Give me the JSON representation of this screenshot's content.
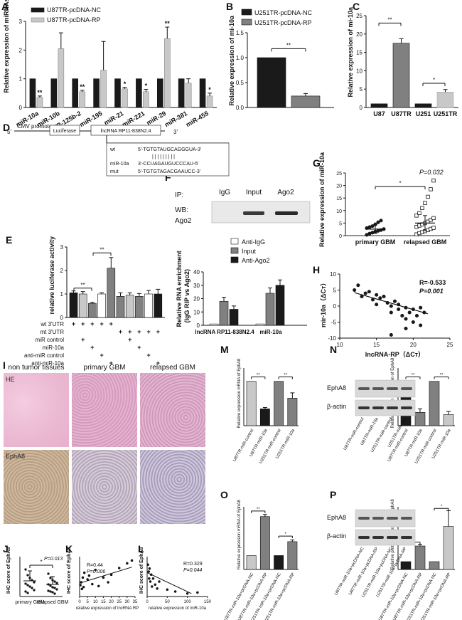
{
  "panel_labels": {
    "A": "A",
    "B": "B",
    "C": "C",
    "D": "D",
    "E": "E",
    "F": "F",
    "G": "G",
    "H": "H",
    "I": "I",
    "J": "J",
    "K": "K",
    "L": "L",
    "M": "M",
    "N": "N",
    "O": "O",
    "P": "P"
  },
  "colors": {
    "dark": "#1a1a1a",
    "mid": "#808080",
    "light": "#c8c8c8",
    "white": "#ffffff",
    "he_pink": "#e8b8d0",
    "epha8_tan": "#c8b6a0"
  },
  "panelA": {
    "ylabel": "Relative expression of miRNAs",
    "legend": [
      "U87TR-pcDNA-NC",
      "U87TR-pcDNA-RP"
    ],
    "yticks": [
      "0",
      "1",
      "2",
      "3"
    ],
    "sig": [
      "**",
      "",
      "**",
      "",
      "*",
      "*",
      "**",
      "",
      "*"
    ]
  },
  "panelB": {
    "ylabel": "Relative expression of mi-10a",
    "legend": [
      "U251TR-pcDNA-NC",
      "U251TR-pcDNA-RP"
    ],
    "yticks": [
      "0.0",
      "0.5",
      "1.0",
      "1.5"
    ],
    "sig": "**"
  },
  "panelC": {
    "ylabel": "Relative expression of mi-10a",
    "yticks": [
      "0",
      "5",
      "10",
      "15",
      "20",
      "25"
    ],
    "sig": [
      "**",
      "*"
    ]
  },
  "panelD": {
    "promoter": "CMV promotor",
    "luciferase": "Luciferase",
    "lncrna": "lncRNA RP11-838N2.4",
    "five": "5'",
    "three": "3'",
    "wt_label": "wt",
    "wt_seq": "5'-TGTGTAUGCAGGGUA-3'",
    "mir_label": "miR-10a",
    "mir_seq": "3'-CCUAGAUGUCCCAU-5'",
    "mut_label": "mut",
    "mut_seq": "5'-TGTGTAGACGAAUCC-3'",
    "pairing": "| | | | | | | | |"
  },
  "panelE": {
    "ylabel": "relative luciferase activity",
    "yticks": [
      "0",
      "1",
      "2",
      "3"
    ],
    "rows": [
      "wt 3'UTR",
      "mt 3'UTR",
      "miR control",
      "miR-10a",
      "anti-miR control",
      "anti-miR-10a"
    ],
    "marks": [
      [
        "+",
        "+",
        "+",
        "+",
        "+",
        "",
        "",
        "",
        "",
        ""
      ],
      [
        "",
        "",
        "",
        "",
        "",
        "+",
        "+",
        "+",
        "+",
        "+"
      ],
      [
        "",
        "+",
        "",
        "",
        "",
        "",
        "+",
        "",
        "",
        ""
      ],
      [
        "",
        "",
        "+",
        "",
        "",
        "",
        "",
        "+",
        "",
        ""
      ],
      [
        "",
        "",
        "",
        "+",
        "",
        "",
        "",
        "",
        "+",
        ""
      ],
      [
        "",
        "",
        "",
        "",
        "+",
        "",
        "",
        "",
        "",
        "+"
      ]
    ],
    "sig": [
      "**",
      "**"
    ]
  },
  "panelF": {
    "ip": "IP:",
    "wb": "WB:",
    "ago2_row": "Ago2",
    "lanes": [
      "IgG",
      "Input",
      "Ago2"
    ],
    "ylabel1": "Relative RNA enrichment",
    "ylabel2": "(IgG RIP vs Ago2)",
    "yticks": [
      "0",
      "10",
      "20",
      "30",
      "40"
    ],
    "legend": [
      "Anti-IgG",
      "Input",
      "Anti-Ago2"
    ],
    "groups": [
      "lncRNA RP11-838N2.4",
      "miR-10a"
    ]
  },
  "panelG": {
    "ylabel": "Relative expression of miR-10a",
    "pvalue": "P=0.032",
    "sig": "*",
    "groups": [
      "primary GBM",
      "relapsed GBM"
    ],
    "yticks": [
      "0",
      "5",
      "10",
      "15",
      "20",
      "25"
    ]
  },
  "panelH": {
    "R": "R=-0.533",
    "P": "P=0.001",
    "ylabel": "mir-10a（ΔCт）",
    "xlabel": "lncRNA-RP（ΔCт）",
    "xticks": [
      "10",
      "15",
      "20",
      "25"
    ],
    "yticks": [
      "-10",
      "-5",
      "0",
      "5",
      "10"
    ]
  },
  "panelI": {
    "cols": [
      "non tumor tissues",
      "primary GBM",
      "relapsed GBM"
    ],
    "rows": [
      "HE",
      "EphA8"
    ]
  },
  "panelJ": {
    "ylabel": "IHC score of EphA8",
    "pvalue": "P=0.013",
    "sig": "*",
    "groups": [
      "primary GBM",
      "relapsed GBM"
    ]
  },
  "panelK": {
    "R": "R=0.44",
    "P": "P=0.006",
    "ylabel": "IHC score of EphA8",
    "xlabel": "relative expression of lncRNA RP",
    "xticks": [
      "0",
      "5",
      "10",
      "15",
      "20",
      "25",
      "30",
      "35"
    ]
  },
  "panelL": {
    "R": "R=0.329",
    "P": "P=0.044",
    "ylabel": "IHC score of EphA8",
    "xlabel": "relative expression of miR-10a",
    "xticks": [
      "0",
      "50",
      "100",
      "150"
    ]
  },
  "panelM": {
    "ylabel": "Relative expression mRNA of EphA8",
    "cats": [
      "U87TR-miR-control",
      "U87TR-miR-10a",
      "U251TR-miR-control",
      "U251TR-miR-10a"
    ]
  },
  "panelN": {
    "blots": [
      "EphA8",
      "β-actin"
    ],
    "lanes": [
      "U87TR-miR-control",
      "U87TR-miR-10a",
      "U251TR-miR-control",
      "U251TR-miR-10a"
    ],
    "ylabel": "Relative protein expression of EphA8",
    "cats": [
      "U87TR-miR-control",
      "U87TR-miR-10a",
      "U251TR-miR-control",
      "U251TR-miR-10a"
    ]
  },
  "panelO": {
    "ylabel": "Relative expression mRNA of EphA8",
    "cats": [
      "U87TR-miR-10a+pcDNA-NC",
      "U87TR-miR-10a+pcDNA-RP",
      "U251TR-miR-10a+pcDNA-NC",
      "U251TR-miR-10a+pcDNA-RP"
    ]
  },
  "panelP": {
    "blots": [
      "EphA8",
      "β-actin"
    ],
    "lanes": [
      "U87TR-miR-10a+pcDNA-NC",
      "U87TR-miR-10a+pcDNA-RP",
      "U251TR-miR-10a+pcDNA-NC",
      "U251TR-miR-10a+pcDNA-RP"
    ],
    "ylabel": "Relative protein expression of EphA8",
    "cats": [
      "U87TR-miR-10a+pcDNA-NC",
      "U87TR-miR-10a+pcDNA-RP",
      "U251TR-miR-10a+pcDNA-NC",
      "U251TR-miR-10a+pcDNA-RP"
    ]
  },
  "chart_data": [
    {
      "panel": "A",
      "type": "bar",
      "categories": [
        "miR-10a",
        "miR-10b",
        "miR-125b-2",
        "miR-195",
        "miR-21",
        "miR-221",
        "miR-29",
        "miR-381",
        "miR-455"
      ],
      "series": [
        {
          "name": "U87TR-pcDNA-NC",
          "values": [
            1,
            1,
            1,
            1,
            1,
            1,
            1,
            1,
            1
          ],
          "errors": [
            0,
            0,
            0,
            0,
            0,
            0,
            0,
            0,
            0
          ]
        },
        {
          "name": "U87TR-pcDNA-RP",
          "values": [
            0.35,
            2.05,
            0.55,
            1.3,
            0.65,
            0.55,
            2.4,
            0.85,
            0.4
          ],
          "errors": [
            0.05,
            0.55,
            0.05,
            1.0,
            0.05,
            0.08,
            0.4,
            0.15,
            0.1
          ]
        }
      ],
      "ylim": [
        0,
        3
      ]
    },
    {
      "panel": "B",
      "type": "bar",
      "categories": [
        "U251TR-pcDNA-NC",
        "U251TR-pcDNA-RP"
      ],
      "values": [
        1.0,
        0.23
      ],
      "errors": [
        0,
        0.05
      ],
      "ylim": [
        0,
        1.5
      ]
    },
    {
      "panel": "C",
      "type": "bar",
      "categories": [
        "U87",
        "U87TR",
        "U251",
        "U251TR"
      ],
      "values": [
        1,
        17.5,
        1,
        4.2
      ],
      "errors": [
        0,
        1.2,
        0,
        0.7
      ],
      "ylim": [
        0,
        25
      ]
    },
    {
      "panel": "E",
      "type": "bar",
      "categories": [
        "1",
        "2",
        "3",
        "4",
        "5",
        "6",
        "7",
        "8",
        "9",
        "10"
      ],
      "values": [
        1.05,
        1.0,
        0.6,
        1.0,
        2.1,
        0.9,
        0.95,
        0.9,
        1.0,
        1.0
      ],
      "errors": [
        0.08,
        0.1,
        0.05,
        0.05,
        0.45,
        0.15,
        0.1,
        0.12,
        0.15,
        0.2
      ],
      "ylim": [
        0,
        3
      ]
    },
    {
      "panel": "F",
      "type": "bar",
      "categories": [
        "lncRNA RP11-838N2.4",
        "miR-10a"
      ],
      "series": [
        {
          "name": "Anti-IgG",
          "values": [
            1,
            1
          ],
          "errors": [
            0,
            0
          ]
        },
        {
          "name": "Input",
          "values": [
            18,
            24
          ],
          "errors": [
            3,
            4
          ]
        },
        {
          "name": "Anti-Ago2",
          "values": [
            12,
            30
          ],
          "errors": [
            2.5,
            4
          ]
        }
      ],
      "ylim": [
        0,
        40
      ]
    },
    {
      "panel": "G",
      "type": "scatter",
      "categories": [
        "primary GBM",
        "relapsed GBM"
      ],
      "groups": [
        {
          "name": "primary GBM",
          "values": [
            0.3,
            0.8,
            1.2,
            1.6,
            1.9,
            2.2,
            2.6,
            3.0,
            3.4,
            3.8,
            4.5,
            5.3,
            6.0
          ],
          "mean": 2.6,
          "sd": 1.7
        },
        {
          "name": "relapsed GBM",
          "values": [
            0.5,
            1.0,
            1.4,
            1.8,
            2.2,
            2.7,
            3.1,
            3.5,
            4.0,
            4.5,
            5.0,
            5.6,
            6.3,
            7.0,
            8.0,
            9.0,
            11.0,
            13.0,
            15.5,
            18.5,
            22.0
          ],
          "mean": 5.0,
          "sd": 3.0
        }
      ],
      "ylim": [
        0,
        25
      ]
    },
    {
      "panel": "H",
      "type": "scatter",
      "points": [
        [
          12,
          5
        ],
        [
          12.5,
          6.5
        ],
        [
          13,
          3
        ],
        [
          13.5,
          4
        ],
        [
          14,
          4.5
        ],
        [
          14.5,
          2
        ],
        [
          15,
          3.5
        ],
        [
          15,
          0.5
        ],
        [
          15.5,
          2.5
        ],
        [
          16,
          3
        ],
        [
          16.5,
          1
        ],
        [
          17,
          0
        ],
        [
          17,
          -2
        ],
        [
          17.5,
          1.5
        ],
        [
          18,
          0.5
        ],
        [
          18,
          -1
        ],
        [
          18.5,
          -3
        ],
        [
          19,
          -0.5
        ],
        [
          19,
          -4
        ],
        [
          19.5,
          -2
        ],
        [
          20,
          -1
        ],
        [
          20,
          -5
        ],
        [
          20.5,
          -3
        ],
        [
          21,
          -0.5
        ],
        [
          21,
          -6
        ],
        [
          21.5,
          -2
        ],
        [
          19,
          -7
        ],
        [
          17,
          -9
        ]
      ],
      "xlim": [
        10,
        25
      ],
      "ylim": [
        -10,
        10
      ]
    },
    {
      "panel": "J",
      "type": "scatter",
      "groups": [
        {
          "name": "primary GBM",
          "mean": 2.4,
          "sd": 1.1
        },
        {
          "name": "relapsed GBM",
          "mean": 1.6,
          "sd": 0.9
        }
      ]
    },
    {
      "panel": "K",
      "type": "scatter",
      "xlim": [
        0,
        35
      ],
      "points": [
        [
          0.5,
          1.2
        ],
        [
          1,
          1.5
        ],
        [
          1.5,
          0.8
        ],
        [
          2,
          2.0
        ],
        [
          2.5,
          1.0
        ],
        [
          3,
          2.5
        ],
        [
          5,
          1.8
        ],
        [
          6,
          2.2
        ],
        [
          8,
          1.3
        ],
        [
          10,
          2.8
        ],
        [
          12,
          1.1
        ],
        [
          15,
          2.0
        ],
        [
          18,
          1.5
        ],
        [
          20,
          2.3
        ],
        [
          25,
          3.0
        ],
        [
          30,
          3.5
        ],
        [
          33,
          3.8
        ]
      ]
    },
    {
      "panel": "L",
      "type": "scatter",
      "xlim": [
        0,
        150
      ],
      "points": [
        [
          2,
          3.2
        ],
        [
          4,
          2.5
        ],
        [
          5,
          1.8
        ],
        [
          6,
          2.8
        ],
        [
          8,
          1.5
        ],
        [
          10,
          2.2
        ],
        [
          12,
          1.0
        ],
        [
          15,
          1.8
        ],
        [
          20,
          1.2
        ],
        [
          25,
          0.8
        ],
        [
          30,
          1.5
        ],
        [
          50,
          0.7
        ],
        [
          70,
          0.5
        ],
        [
          100,
          0.3
        ],
        [
          125,
          0.4
        ]
      ]
    },
    {
      "panel": "M",
      "type": "bar",
      "categories": [
        "U87TR-miR-control",
        "U87TR-miR-10a",
        "U251TR-miR-control",
        "U251TR-miR-10a"
      ],
      "values": [
        1.0,
        0.38,
        1.0,
        0.62
      ],
      "errors": [
        0,
        0.03,
        0,
        0.12
      ]
    },
    {
      "panel": "N",
      "type": "bar",
      "categories": [
        "U87TR-miR-control",
        "U87TR-miR-10a",
        "U251TR-miR-control",
        "U251TR-miR-10a"
      ],
      "values": [
        1.0,
        0.3,
        1.0,
        0.25
      ],
      "errors": [
        0,
        0.08,
        0,
        0.07
      ]
    },
    {
      "panel": "O",
      "type": "bar",
      "categories": [
        "U87TR-miR-10a+pcDNA-NC",
        "U87TR-miR-10a+pcDNA-RP",
        "U251TR-miR-10a+pcDNA-NC",
        "U251TR-miR-10a+pcDNA-RP"
      ],
      "values": [
        1.0,
        3.8,
        1.0,
        2.0
      ],
      "errors": [
        0,
        0.15,
        0,
        0.12
      ]
    },
    {
      "panel": "P",
      "type": "bar",
      "categories": [
        "U87TR-miR-10a+pcDNA-NC",
        "U87TR-miR-10a+pcDNA-RP",
        "U251TR-miR-10a+pcDNA-NC",
        "U251TR-miR-10a+pcDNA-RP"
      ],
      "values": [
        1.0,
        3.0,
        1.0,
        5.5
      ],
      "errors": [
        0,
        0.2,
        0,
        2.0
      ]
    }
  ]
}
